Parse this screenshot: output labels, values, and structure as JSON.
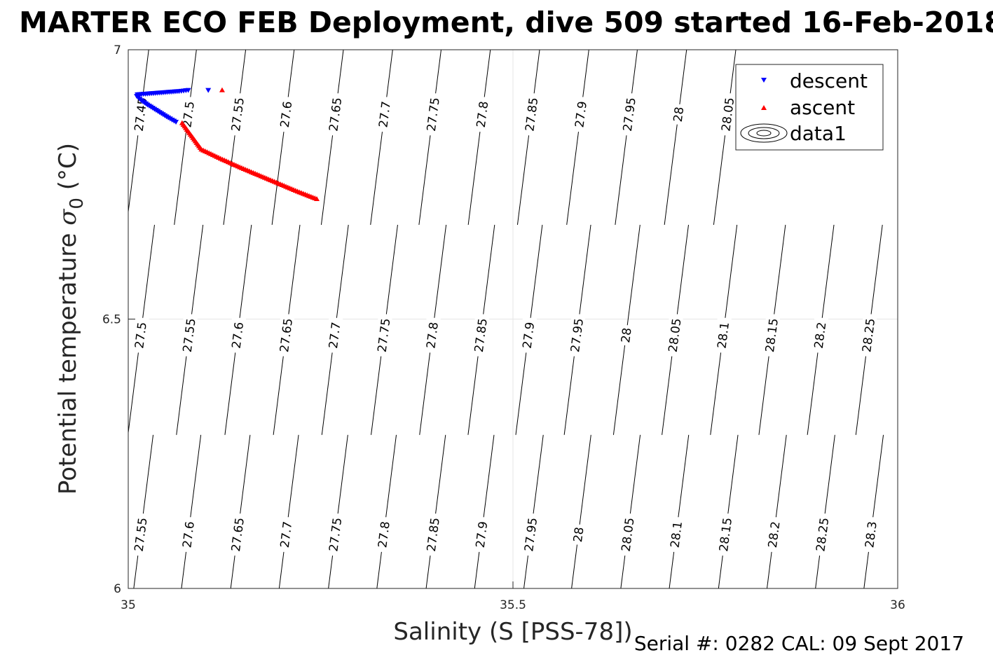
{
  "chart_data": {
    "type": "scatter",
    "title": "MARTER ECO FEB Deployment, dive 509 started 16-Feb-2018",
    "xlabel": "Salinity (S [PSS-78])",
    "ylabel_main": "Potential temperature ",
    "ylabel_sigma": "σ",
    "ylabel_sub": "0",
    "ylabel_unit": " (°C)",
    "xlim": [
      35,
      36
    ],
    "ylim": [
      6,
      7
    ],
    "x_ticks": [
      "35",
      "35.5",
      "36"
    ],
    "y_ticks": [
      "6",
      "6.5",
      "7"
    ],
    "grid": true,
    "legend_position": "top-right",
    "legend": [
      "descent",
      "ascent",
      "data1"
    ],
    "footer": "Serial #: 0282  CAL: 09 Sept 2017",
    "colors": {
      "descent": "#0000ff",
      "ascent": "#ff0000",
      "contour": "#000000",
      "grid": "#e6e6e6",
      "axis": "#262626"
    },
    "density_contours": {
      "slope_dT_per_dS": 11.3,
      "levels": [
        "27.45",
        "27.5",
        "27.55",
        "27.6",
        "27.65",
        "27.7",
        "27.75",
        "27.8",
        "27.85",
        "27.9",
        "27.95",
        "28",
        "28.05",
        "28.1",
        "28.15",
        "28.2",
        "28.25",
        "28.3"
      ],
      "label_rows": [
        {
          "temperature": 6.88,
          "labels": [
            {
              "text": "27.45",
              "salinity": 35.016
            },
            {
              "text": "27.5",
              "salinity": 35.078
            },
            {
              "text": "27.55",
              "salinity": 35.142
            },
            {
              "text": "27.6",
              "salinity": 35.205
            },
            {
              "text": "27.65",
              "salinity": 35.269
            },
            {
              "text": "27.7",
              "salinity": 35.333
            },
            {
              "text": "27.75",
              "salinity": 35.396
            },
            {
              "text": "27.8",
              "salinity": 35.46
            },
            {
              "text": "27.85",
              "salinity": 35.524
            },
            {
              "text": "27.9",
              "salinity": 35.588
            },
            {
              "text": "27.95",
              "salinity": 35.651
            },
            {
              "text": "28",
              "salinity": 35.715
            },
            {
              "text": "28.05",
              "salinity": 35.779
            }
          ]
        },
        {
          "temperature": 6.47,
          "labels": [
            {
              "text": "27.5",
              "salinity": 35.016
            },
            {
              "text": "27.55",
              "salinity": 35.079
            },
            {
              "text": "27.6",
              "salinity": 35.142
            },
            {
              "text": "27.65",
              "salinity": 35.205
            },
            {
              "text": "27.7",
              "salinity": 35.268
            },
            {
              "text": "27.75",
              "salinity": 35.332
            },
            {
              "text": "27.8",
              "salinity": 35.395
            },
            {
              "text": "27.85",
              "salinity": 35.458
            },
            {
              "text": "27.9",
              "salinity": 35.52
            },
            {
              "text": "27.95",
              "salinity": 35.583
            },
            {
              "text": "28",
              "salinity": 35.647
            },
            {
              "text": "28.05",
              "salinity": 35.71
            },
            {
              "text": "28.1",
              "salinity": 35.773
            },
            {
              "text": "28.15",
              "salinity": 35.836
            },
            {
              "text": "28.2",
              "salinity": 35.899
            },
            {
              "text": "28.25",
              "salinity": 35.962
            }
          ]
        },
        {
          "temperature": 6.1,
          "labels": [
            {
              "text": "27.55",
              "salinity": 35.016
            },
            {
              "text": "27.6",
              "salinity": 35.078
            },
            {
              "text": "27.65",
              "salinity": 35.142
            },
            {
              "text": "27.7",
              "salinity": 35.205
            },
            {
              "text": "27.75",
              "salinity": 35.269
            },
            {
              "text": "27.8",
              "salinity": 35.332
            },
            {
              "text": "27.85",
              "salinity": 35.396
            },
            {
              "text": "27.9",
              "salinity": 35.459
            },
            {
              "text": "27.95",
              "salinity": 35.523
            },
            {
              "text": "28",
              "salinity": 35.585
            },
            {
              "text": "28.05",
              "salinity": 35.649
            },
            {
              "text": "28.1",
              "salinity": 35.712
            },
            {
              "text": "28.15",
              "salinity": 35.776
            },
            {
              "text": "28.2",
              "salinity": 35.839
            },
            {
              "text": "28.25",
              "salinity": 35.902
            },
            {
              "text": "28.3",
              "salinity": 35.965
            }
          ]
        }
      ]
    },
    "series": [
      {
        "name": "descent",
        "marker": "triangle-down",
        "x": [
          35.062,
          35.052,
          35.043,
          35.034,
          35.025,
          35.017,
          35.011,
          35.012,
          35.03,
          35.048,
          35.066,
          35.078
        ],
        "y": [
          6.866,
          6.874,
          6.882,
          6.89,
          6.898,
          6.906,
          6.914,
          6.917,
          6.919,
          6.921,
          6.923,
          6.925
        ]
      },
      {
        "name": "ascent",
        "marker": "triangle-up",
        "x": [
          35.245,
          35.22,
          35.195,
          35.17,
          35.145,
          35.12,
          35.095,
          35.07
        ],
        "y": [
          6.723,
          6.737,
          6.752,
          6.767,
          6.782,
          6.798,
          6.815,
          6.864
        ]
      }
    ]
  }
}
